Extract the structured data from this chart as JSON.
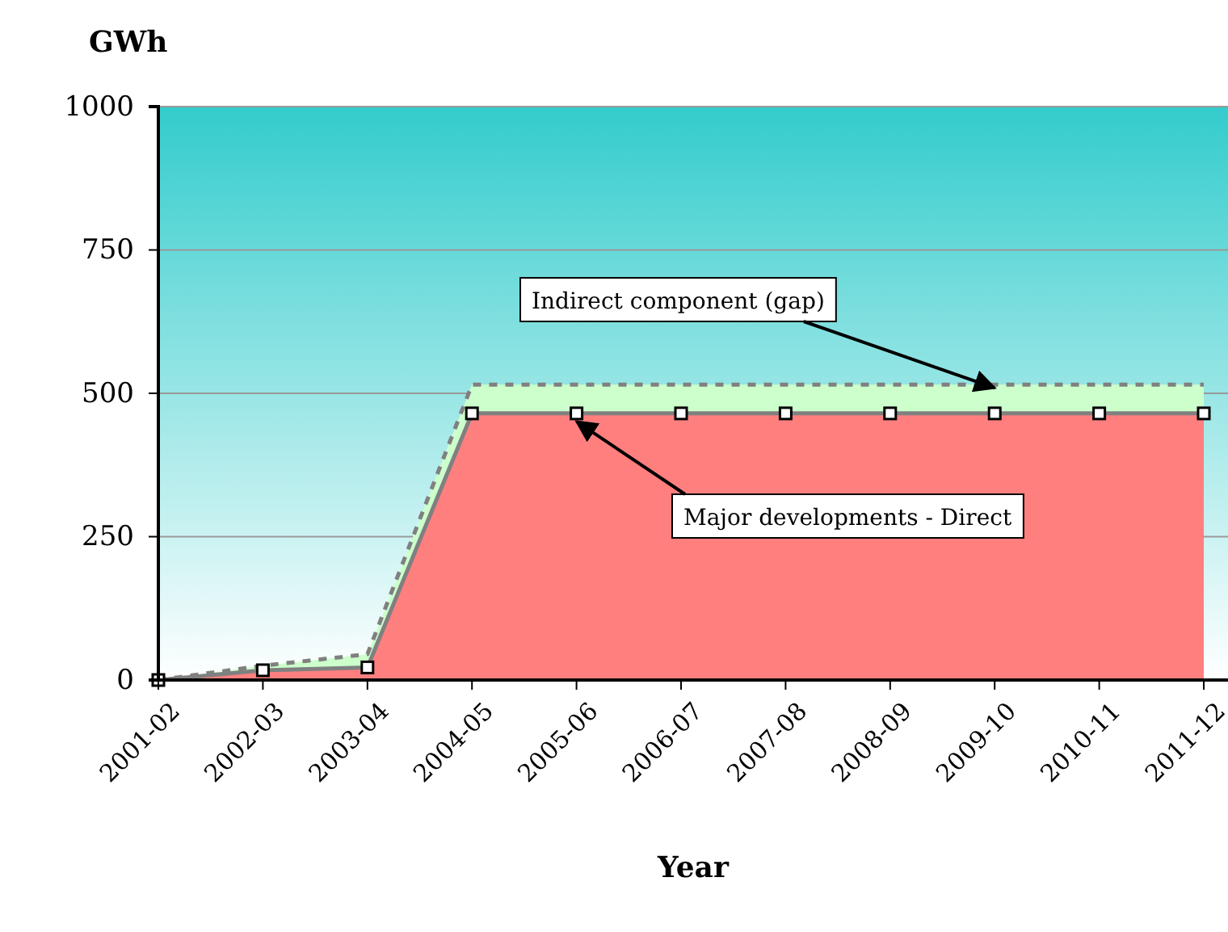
{
  "chart_data": {
    "type": "area",
    "stacked": true,
    "xlabel": "Year",
    "ylabel": "GWh",
    "categories": [
      "2001-02",
      "2002-03",
      "2003-04",
      "2004-05",
      "2005-06",
      "2006-07",
      "2007-08",
      "2008-09",
      "2009-10",
      "2010-11",
      "2011-12"
    ],
    "series": [
      {
        "color": "#ff7f7f",
        "values": [
          0,
          17,
          22,
          465,
          465,
          465,
          465,
          465,
          465,
          465,
          465
        ],
        "marker": "square",
        "line_style": "solid"
      },
      {
        "color": "#ccffcc",
        "values": [
          0,
          8,
          23,
          50,
          50,
          50,
          50,
          50,
          50,
          50,
          50
        ],
        "marker": "none",
        "line_style": "dashed"
      }
    ],
    "ylim": [
      0,
      1000
    ],
    "yticks": [
      0,
      250,
      500,
      750,
      1000
    ],
    "grid": "y",
    "annotations": [
      {
        "text": "Indirect component (gap)",
        "x": "2009-10",
        "y": 515
      },
      {
        "text": "Major developments - Direct",
        "x": "2005-06",
        "y": 465
      }
    ]
  }
}
